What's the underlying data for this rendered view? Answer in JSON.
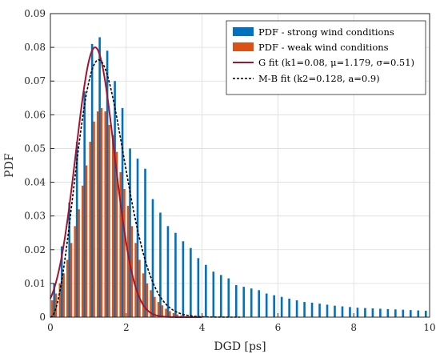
{
  "chart_data": {
    "type": "bar",
    "xlabel": "DGD [ps]",
    "ylabel": "PDF",
    "xlim": [
      0,
      10
    ],
    "ylim": [
      0,
      0.09
    ],
    "xticks": [
      0,
      2,
      4,
      6,
      8,
      10
    ],
    "yticks": [
      0,
      0.01,
      0.02,
      0.03,
      0.04,
      0.05,
      0.06,
      0.07,
      0.08,
      0.09
    ],
    "grid": true,
    "legend_position": "top-right",
    "bar_width": 0.055,
    "series": [
      {
        "name": "PDF - strong wind conditions",
        "kind": "bar",
        "color": "#0072bd",
        "x": [
          0.1,
          0.3,
          0.5,
          0.7,
          0.9,
          1.1,
          1.3,
          1.5,
          1.7,
          1.9,
          2.1,
          2.3,
          2.5,
          2.7,
          2.9,
          3.1,
          3.3,
          3.5,
          3.7,
          3.9,
          4.1,
          4.3,
          4.5,
          4.7,
          4.9,
          5.1,
          5.3,
          5.5,
          5.7,
          5.9,
          6.1,
          6.3,
          6.5,
          6.7,
          6.9,
          7.1,
          7.3,
          7.5,
          7.7,
          7.9,
          8.1,
          8.3,
          8.5,
          8.7,
          8.9,
          9.1,
          9.3,
          9.5,
          9.7,
          9.9
        ],
        "values": [
          0.01,
          0.021,
          0.034,
          0.052,
          0.067,
          0.081,
          0.083,
          0.079,
          0.07,
          0.062,
          0.05,
          0.047,
          0.044,
          0.035,
          0.031,
          0.027,
          0.025,
          0.0225,
          0.0205,
          0.0175,
          0.0155,
          0.0135,
          0.0125,
          0.0115,
          0.0095,
          0.009,
          0.0085,
          0.008,
          0.007,
          0.0065,
          0.006,
          0.0055,
          0.005,
          0.0045,
          0.0043,
          0.004,
          0.0037,
          0.0034,
          0.0032,
          0.003,
          0.0028,
          0.0027,
          0.0026,
          0.0025,
          0.0024,
          0.0023,
          0.0022,
          0.0021,
          0.002,
          0.0019
        ]
      },
      {
        "name": "PDF - weak wind conditions",
        "kind": "bar",
        "color": "#d95319",
        "x": [
          0.05,
          0.15,
          0.25,
          0.35,
          0.45,
          0.55,
          0.65,
          0.75,
          0.85,
          0.95,
          1.05,
          1.15,
          1.25,
          1.35,
          1.45,
          1.55,
          1.65,
          1.75,
          1.85,
          1.95,
          2.05,
          2.15,
          2.25,
          2.35,
          2.45,
          2.55,
          2.65,
          2.75,
          2.85,
          2.95,
          3.05,
          3.15,
          3.25,
          3.35,
          3.45,
          3.55,
          3.65,
          3.75
        ],
        "values": [
          0.005,
          0.007,
          0.01,
          0.013,
          0.017,
          0.022,
          0.027,
          0.032,
          0.039,
          0.045,
          0.052,
          0.058,
          0.061,
          0.062,
          0.061,
          0.057,
          0.054,
          0.049,
          0.043,
          0.038,
          0.033,
          0.027,
          0.022,
          0.017,
          0.013,
          0.01,
          0.008,
          0.006,
          0.0045,
          0.0035,
          0.0025,
          0.0018,
          0.0012,
          0.0008,
          0.0005,
          0.0003,
          0.0002,
          0.0001
        ]
      },
      {
        "name": "G fit (k1=0.08,  μ=1.179,  σ=0.51)",
        "kind": "gaussian_fit",
        "color": "#a2142f",
        "params": {
          "k1": 0.08,
          "mu": 1.179,
          "sigma": 0.51
        }
      },
      {
        "name": "M-B fit (k2=0.128, a=0.9)",
        "kind": "maxwell_fit",
        "color": "#000000",
        "params": {
          "k2": 0.128,
          "a": 0.9
        }
      }
    ]
  }
}
